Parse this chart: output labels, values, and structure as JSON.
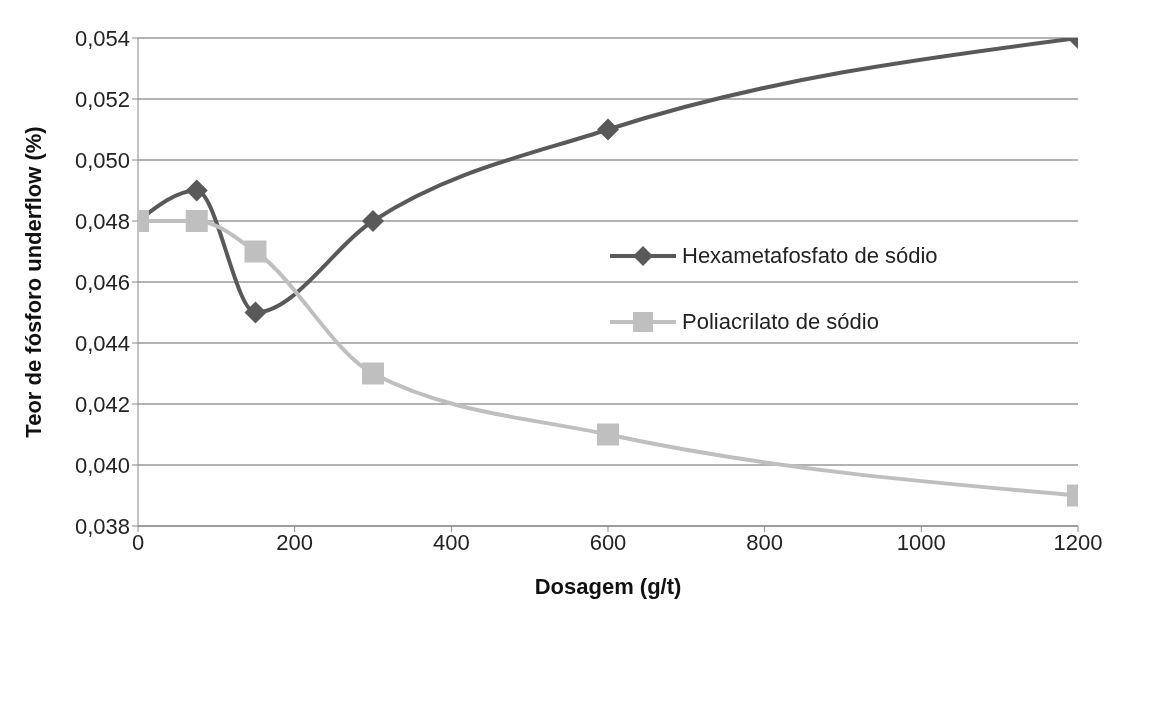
{
  "chart_data": {
    "type": "line",
    "xlabel": "Dosagem (g/t)",
    "ylabel": "Teor de fósforo underflow (%)",
    "x": [
      0,
      75,
      150,
      300,
      600,
      1200
    ],
    "series": [
      {
        "name": "Hexametafosfato de sódio",
        "color": "#595959",
        "marker": "diamond",
        "values": [
          0.048,
          0.049,
          0.045,
          0.048,
          0.051,
          0.054
        ]
      },
      {
        "name": "Poliacrilato de sódio",
        "color": "#bfbfbf",
        "marker": "square",
        "values": [
          0.048,
          0.048,
          0.047,
          0.043,
          0.041,
          0.039
        ]
      }
    ],
    "xlim": [
      0,
      1200
    ],
    "xticks": [
      0,
      200,
      400,
      600,
      800,
      1000,
      1200
    ],
    "ylim": [
      0.038,
      0.054
    ],
    "yticks": [
      {
        "value": 0.038,
        "label": "0,038"
      },
      {
        "value": 0.04,
        "label": "0,040"
      },
      {
        "value": 0.042,
        "label": "0,042"
      },
      {
        "value": 0.044,
        "label": "0,044"
      },
      {
        "value": 0.046,
        "label": "0,046"
      },
      {
        "value": 0.048,
        "label": "0,048"
      },
      {
        "value": 0.05,
        "label": "0,050"
      },
      {
        "value": 0.052,
        "label": "0,052"
      },
      {
        "value": 0.054,
        "label": "0,054"
      }
    ],
    "grid": "y",
    "legend": "right",
    "line_style": "solid"
  }
}
